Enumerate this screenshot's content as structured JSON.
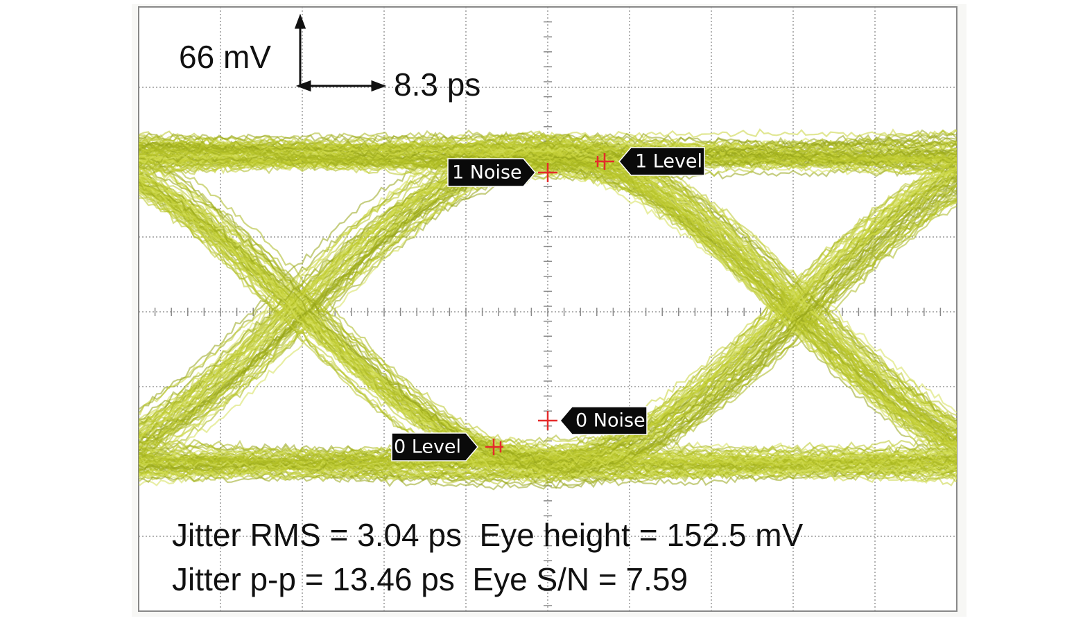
{
  "scale": {
    "voltage": "66 mV",
    "time": "8.3 ps"
  },
  "markers": {
    "one_noise": "1 Noise",
    "one_level": "1 Level",
    "zero_noise": "0 Noise",
    "zero_level": "0 Level"
  },
  "measurements": [
    "Jitter RMS = 3.04 ps  Eye height = 152.5 mV",
    "Jitter p-p = 13.46 ps  Eye S/N = 7.59"
  ]
}
